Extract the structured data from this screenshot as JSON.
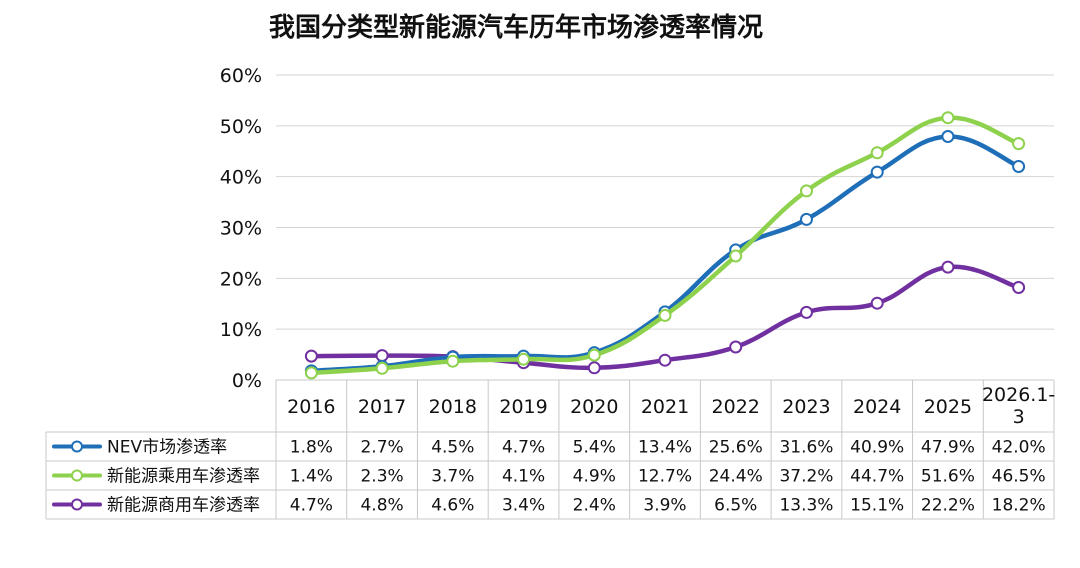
{
  "chart_data": {
    "type": "line",
    "title": "我国分类型新能源汽车历年市场渗透率情况",
    "categories": [
      "2016",
      "2017",
      "2018",
      "2019",
      "2020",
      "2021",
      "2022",
      "2023",
      "2024",
      "2025",
      "2026.1-3"
    ],
    "category_lines": [
      [
        "2016"
      ],
      [
        "2017"
      ],
      [
        "2018"
      ],
      [
        "2019"
      ],
      [
        "2020"
      ],
      [
        "2021"
      ],
      [
        "2022"
      ],
      [
        "2023"
      ],
      [
        "2024"
      ],
      [
        "2025"
      ],
      [
        "2026.1-",
        "3"
      ]
    ],
    "y_ticks": [
      "0%",
      "10%",
      "20%",
      "30%",
      "40%",
      "50%",
      "60%"
    ],
    "ylim": [
      0,
      60
    ],
    "grid": true,
    "legend": "data-table",
    "series": [
      {
        "name": "NEV市场渗透率",
        "color": "#1f6fb8",
        "values": [
          1.8,
          2.7,
          4.5,
          4.7,
          5.4,
          13.4,
          25.6,
          31.6,
          40.9,
          47.9,
          42.0
        ],
        "labels": [
          "1.8%",
          "2.7%",
          "4.5%",
          "4.7%",
          "5.4%",
          "13.4%",
          "25.6%",
          "31.6%",
          "40.9%",
          "47.9%",
          "42.0%"
        ]
      },
      {
        "name": "新能源乘用车渗透率",
        "color": "#8dd14c",
        "values": [
          1.4,
          2.3,
          3.7,
          4.1,
          4.9,
          12.7,
          24.4,
          37.2,
          44.7,
          51.6,
          46.5
        ],
        "labels": [
          "1.4%",
          "2.3%",
          "3.7%",
          "4.1%",
          "4.9%",
          "12.7%",
          "24.4%",
          "37.2%",
          "44.7%",
          "51.6%",
          "46.5%"
        ]
      },
      {
        "name": "新能源商用车渗透率",
        "color": "#7030a0",
        "values": [
          4.7,
          4.8,
          4.6,
          3.4,
          2.4,
          3.9,
          6.5,
          13.3,
          15.1,
          22.2,
          18.2
        ],
        "labels": [
          "4.7%",
          "4.8%",
          "4.6%",
          "3.4%",
          "2.4%",
          "3.9%",
          "6.5%",
          "13.3%",
          "15.1%",
          "22.2%",
          "18.2%"
        ]
      }
    ]
  }
}
